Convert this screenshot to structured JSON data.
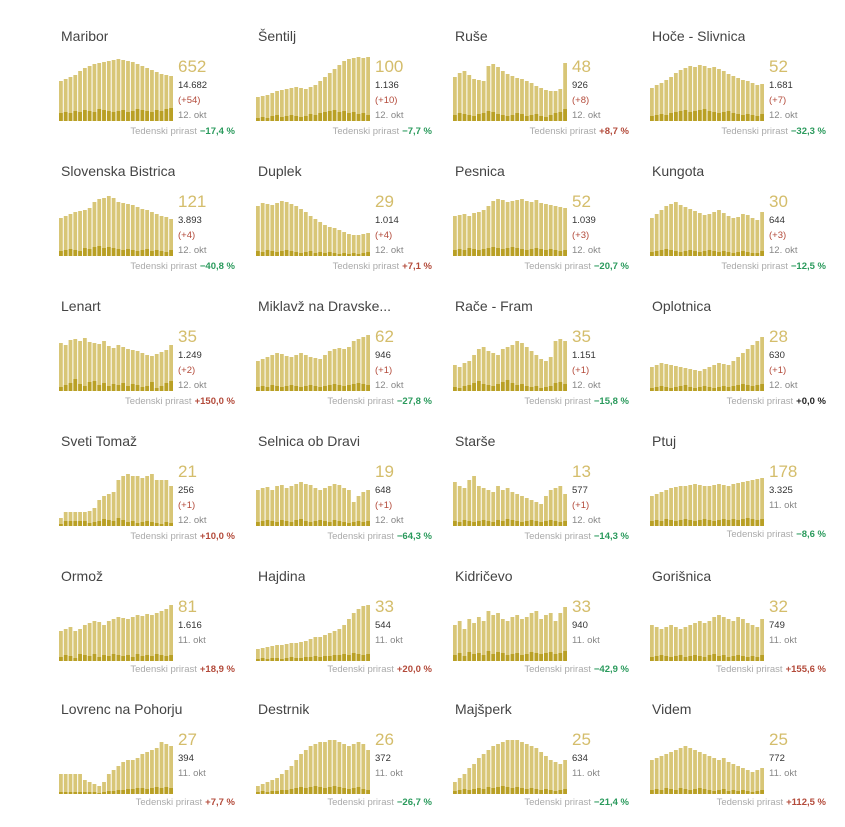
{
  "colors": {
    "active_bar": "#d8c677",
    "new_cases_bar": "#b9a025",
    "active_number": "#d4bd6b",
    "increase": "#b34a3a",
    "decrease": "#2a9a5c",
    "neutral": "#222222"
  },
  "weekly_growth_label": "Tedenski prirast",
  "municipalities": [
    {
      "name": "Maribor",
      "active": "652",
      "total": "14.682",
      "delta": "(+54)",
      "date": "12. okt",
      "weekly": "−17,4 %",
      "trend": "down",
      "active_series": [
        40,
        42,
        44,
        46,
        50,
        53,
        55,
        57,
        58,
        59,
        60,
        61,
        62,
        61,
        60,
        59,
        57,
        55,
        53,
        51,
        49,
        47,
        46,
        45
      ],
      "new_series": [
        8,
        9,
        8,
        10,
        9,
        11,
        10,
        9,
        12,
        11,
        10,
        9,
        10,
        11,
        9,
        10,
        12,
        11,
        10,
        9,
        11,
        10,
        12,
        13
      ]
    },
    {
      "name": "Šentilj",
      "active": "100",
      "total": "1.136",
      "delta": "(+10)",
      "date": "12. okt",
      "weekly": "−7,7 %",
      "trend": "down",
      "active_series": [
        24,
        25,
        26,
        28,
        30,
        31,
        32,
        33,
        34,
        33,
        32,
        34,
        36,
        40,
        44,
        48,
        52,
        56,
        60,
        62,
        63,
        64,
        63,
        64
      ],
      "new_series": [
        3,
        4,
        3,
        5,
        6,
        4,
        5,
        6,
        5,
        4,
        5,
        7,
        6,
        8,
        9,
        10,
        11,
        9,
        10,
        8,
        9,
        7,
        8,
        6
      ]
    },
    {
      "name": "Ruše",
      "active": "48",
      "total": "926",
      "delta": "(+8)",
      "date": "12. okt",
      "weekly": "+8,7 %",
      "trend": "up",
      "active_series": [
        44,
        48,
        50,
        46,
        42,
        41,
        40,
        55,
        57,
        54,
        50,
        47,
        45,
        43,
        42,
        40,
        38,
        35,
        33,
        31,
        30,
        30,
        32,
        58
      ],
      "new_series": [
        6,
        8,
        7,
        6,
        5,
        7,
        8,
        10,
        9,
        7,
        6,
        5,
        6,
        8,
        7,
        5,
        6,
        7,
        5,
        4,
        6,
        8,
        9,
        12
      ]
    },
    {
      "name": "Hoče - Slivnica",
      "active": "52",
      "total": "1.681",
      "delta": "(+7)",
      "date": "12. okt",
      "weekly": "−32,3 %",
      "trend": "down",
      "active_series": [
        33,
        36,
        38,
        41,
        44,
        48,
        51,
        53,
        55,
        54,
        56,
        55,
        53,
        54,
        52,
        50,
        47,
        45,
        43,
        41,
        40,
        38,
        36,
        37
      ],
      "new_series": [
        5,
        6,
        7,
        6,
        8,
        9,
        10,
        11,
        9,
        10,
        11,
        12,
        10,
        9,
        8,
        9,
        10,
        8,
        7,
        6,
        7,
        6,
        5,
        7
      ]
    },
    {
      "name": "Slovenska Bistrica",
      "active": "121",
      "total": "3.893",
      "delta": "(+4)",
      "date": "12. okt",
      "weekly": "−40,8 %",
      "trend": "down",
      "active_series": [
        38,
        40,
        42,
        44,
        45,
        46,
        48,
        54,
        57,
        58,
        60,
        58,
        54,
        53,
        52,
        51,
        49,
        47,
        46,
        44,
        42,
        40,
        39,
        37
      ],
      "new_series": [
        5,
        6,
        7,
        6,
        5,
        8,
        7,
        9,
        10,
        8,
        9,
        8,
        7,
        6,
        7,
        6,
        5,
        6,
        7,
        5,
        6,
        5,
        4,
        6
      ]
    },
    {
      "name": "Duplek",
      "active": "29",
      "total": "1.014",
      "delta": "(+4)",
      "date": "12. okt",
      "weekly": "+7,1 %",
      "trend": "up",
      "active_series": [
        50,
        53,
        52,
        51,
        53,
        55,
        54,
        52,
        50,
        47,
        44,
        40,
        37,
        34,
        31,
        29,
        28,
        26,
        24,
        22,
        21,
        21,
        22,
        23
      ],
      "new_series": [
        5,
        4,
        6,
        5,
        4,
        5,
        6,
        5,
        4,
        3,
        4,
        5,
        3,
        4,
        3,
        4,
        3,
        2,
        3,
        2,
        3,
        2,
        3,
        4
      ]
    },
    {
      "name": "Pesnica",
      "active": "52",
      "total": "1.039",
      "delta": "(+3)",
      "date": "12. okt",
      "weekly": "−20,7 %",
      "trend": "down",
      "active_series": [
        40,
        41,
        42,
        40,
        43,
        44,
        46,
        50,
        55,
        57,
        56,
        54,
        55,
        56,
        57,
        55,
        54,
        56,
        53,
        52,
        51,
        50,
        49,
        48
      ],
      "new_series": [
        6,
        7,
        6,
        8,
        7,
        6,
        7,
        8,
        9,
        8,
        7,
        8,
        9,
        8,
        7,
        6,
        7,
        8,
        7,
        6,
        7,
        6,
        5,
        6
      ]
    },
    {
      "name": "Kungota",
      "active": "30",
      "total": "644",
      "delta": "(+3)",
      "date": "12. okt",
      "weekly": "−12,5 %",
      "trend": "down",
      "active_series": [
        38,
        42,
        46,
        50,
        52,
        54,
        51,
        49,
        47,
        45,
        43,
        41,
        42,
        44,
        46,
        43,
        40,
        38,
        39,
        42,
        41,
        38,
        36,
        44
      ],
      "new_series": [
        4,
        5,
        6,
        7,
        6,
        5,
        4,
        5,
        6,
        5,
        4,
        5,
        6,
        5,
        4,
        5,
        4,
        3,
        4,
        5,
        4,
        3,
        3,
        5
      ]
    },
    {
      "name": "Lenart",
      "active": "35",
      "total": "1.249",
      "delta": "(+2)",
      "date": "12. okt",
      "weekly": "+150,0 %",
      "trend": "up",
      "active_series": [
        48,
        46,
        51,
        52,
        50,
        53,
        49,
        48,
        47,
        50,
        45,
        43,
        46,
        44,
        42,
        41,
        40,
        38,
        36,
        35,
        37,
        39,
        41,
        46
      ],
      "new_series": [
        4,
        6,
        8,
        12,
        7,
        5,
        9,
        10,
        6,
        8,
        5,
        7,
        6,
        8,
        5,
        7,
        6,
        4,
        5,
        9,
        3,
        5,
        8,
        10
      ]
    },
    {
      "name": "Miklavž na Dravske...",
      "active": "62",
      "total": "946",
      "delta": "(+1)",
      "date": "12. okt",
      "weekly": "−27,8 %",
      "trend": "down",
      "active_series": [
        30,
        32,
        34,
        36,
        38,
        37,
        35,
        34,
        36,
        38,
        36,
        34,
        33,
        32,
        36,
        40,
        42,
        43,
        42,
        44,
        50,
        52,
        54,
        56
      ],
      "new_series": [
        4,
        5,
        4,
        6,
        5,
        4,
        5,
        6,
        5,
        4,
        5,
        6,
        5,
        4,
        5,
        6,
        7,
        6,
        5,
        6,
        7,
        8,
        7,
        6
      ]
    },
    {
      "name": "Rače - Fram",
      "active": "35",
      "total": "1.151",
      "delta": "(+1)",
      "date": "12. okt",
      "weekly": "−15,8 %",
      "trend": "down",
      "active_series": [
        26,
        24,
        28,
        30,
        36,
        42,
        44,
        40,
        38,
        36,
        42,
        44,
        46,
        50,
        48,
        44,
        40,
        36,
        32,
        30,
        34,
        50,
        52,
        50
      ],
      "new_series": [
        4,
        3,
        5,
        6,
        8,
        10,
        7,
        6,
        5,
        7,
        9,
        11,
        8,
        6,
        7,
        5,
        4,
        5,
        3,
        4,
        5,
        8,
        9,
        7
      ]
    },
    {
      "name": "Oplotnica",
      "active": "28",
      "total": "630",
      "delta": "(+1)",
      "date": "12. okt",
      "weekly": "+0,0 %",
      "trend": "zero",
      "active_series": [
        24,
        26,
        28,
        27,
        26,
        25,
        24,
        23,
        22,
        21,
        20,
        22,
        24,
        26,
        28,
        27,
        26,
        30,
        34,
        38,
        42,
        46,
        50,
        54
      ],
      "new_series": [
        3,
        4,
        5,
        4,
        3,
        4,
        5,
        6,
        4,
        3,
        4,
        5,
        4,
        3,
        4,
        5,
        4,
        5,
        6,
        7,
        6,
        5,
        6,
        7
      ]
    },
    {
      "name": "Sveti Tomaž",
      "active": "21",
      "total": "256",
      "delta": "(+1)",
      "date": "12. okt",
      "weekly": "+10,0 %",
      "trend": "up",
      "active_series": [
        8,
        14,
        14,
        14,
        14,
        14,
        15,
        18,
        26,
        30,
        32,
        34,
        46,
        50,
        52,
        50,
        50,
        48,
        50,
        52,
        46,
        46,
        46,
        40
      ],
      "new_series": [
        2,
        5,
        5,
        5,
        5,
        5,
        3,
        4,
        5,
        7,
        6,
        5,
        8,
        6,
        4,
        5,
        3,
        4,
        5,
        4,
        3,
        2,
        4,
        3
      ]
    },
    {
      "name": "Selnica ob Dravi",
      "active": "19",
      "total": "648",
      "delta": "(+1)",
      "date": "12. okt",
      "weekly": "−64,3 %",
      "trend": "down",
      "active_series": [
        36,
        38,
        39,
        36,
        40,
        41,
        38,
        40,
        42,
        44,
        42,
        41,
        38,
        36,
        38,
        40,
        42,
        41,
        38,
        36,
        24,
        30,
        34,
        36
      ],
      "new_series": [
        4,
        5,
        6,
        5,
        4,
        6,
        5,
        4,
        6,
        7,
        5,
        4,
        5,
        6,
        5,
        4,
        6,
        5,
        4,
        3,
        4,
        5,
        4,
        5
      ]
    },
    {
      "name": "Starše",
      "active": "13",
      "total": "577",
      "delta": "(+1)",
      "date": "12. okt",
      "weekly": "−14,3 %",
      "trend": "down",
      "active_series": [
        44,
        40,
        38,
        46,
        50,
        40,
        38,
        36,
        34,
        40,
        36,
        38,
        34,
        32,
        30,
        28,
        26,
        24,
        22,
        30,
        36,
        38,
        40,
        32
      ],
      "new_series": [
        5,
        4,
        6,
        5,
        4,
        5,
        6,
        5,
        4,
        6,
        5,
        7,
        6,
        5,
        4,
        5,
        6,
        5,
        4,
        5,
        6,
        5,
        4,
        5
      ]
    },
    {
      "name": "Ptuj",
      "active": "178",
      "total": "3.325",
      "delta": "",
      "date": "11. okt",
      "weekly": "−8,6 %",
      "trend": "down",
      "active_series": [
        30,
        32,
        34,
        36,
        38,
        39,
        40,
        40,
        41,
        42,
        41,
        40,
        40,
        41,
        42,
        41,
        40,
        42,
        43,
        44,
        45,
        46,
        47,
        48
      ],
      "new_series": [
        5,
        6,
        5,
        7,
        6,
        5,
        6,
        7,
        6,
        5,
        6,
        7,
        6,
        5,
        6,
        7,
        6,
        7,
        6,
        7,
        8,
        7,
        6,
        7
      ]
    },
    {
      "name": "Ormož",
      "active": "81",
      "total": "1.616",
      "delta": "",
      "date": "11. okt",
      "weekly": "+18,9 %",
      "trend": "up",
      "active_series": [
        30,
        32,
        34,
        30,
        32,
        36,
        38,
        40,
        39,
        36,
        40,
        42,
        44,
        43,
        42,
        44,
        46,
        45,
        47,
        46,
        48,
        50,
        52,
        56
      ],
      "new_series": [
        4,
        6,
        5,
        3,
        7,
        6,
        5,
        7,
        4,
        6,
        5,
        7,
        6,
        5,
        6,
        4,
        7,
        5,
        6,
        5,
        7,
        6,
        5,
        6
      ]
    },
    {
      "name": "Hajdina",
      "active": "33",
      "total": "544",
      "delta": "",
      "date": "11. okt",
      "weekly": "+20,0 %",
      "trend": "up",
      "active_series": [
        12,
        13,
        14,
        15,
        16,
        16,
        17,
        18,
        18,
        19,
        20,
        22,
        24,
        24,
        26,
        28,
        30,
        32,
        36,
        42,
        48,
        52,
        55,
        56
      ],
      "new_series": [
        2,
        3,
        2,
        3,
        3,
        2,
        3,
        4,
        3,
        3,
        4,
        4,
        5,
        4,
        5,
        5,
        6,
        6,
        7,
        6,
        8,
        7,
        6,
        7
      ]
    },
    {
      "name": "Kidričevo",
      "active": "33",
      "total": "940",
      "delta": "",
      "date": "11. okt",
      "weekly": "−42,9 %",
      "trend": "down",
      "active_series": [
        36,
        40,
        32,
        42,
        38,
        44,
        40,
        50,
        46,
        48,
        42,
        40,
        44,
        46,
        42,
        44,
        48,
        50,
        42,
        46,
        48,
        40,
        48,
        54
      ],
      "new_series": [
        6,
        8,
        5,
        9,
        7,
        8,
        6,
        10,
        7,
        9,
        8,
        6,
        7,
        8,
        6,
        7,
        9,
        8,
        7,
        8,
        9,
        7,
        8,
        10
      ]
    },
    {
      "name": "Gorišnica",
      "active": "32",
      "total": "749",
      "delta": "",
      "date": "11. okt",
      "weekly": "+155,6 %",
      "trend": "up",
      "active_series": [
        36,
        34,
        32,
        34,
        36,
        34,
        32,
        34,
        36,
        38,
        40,
        38,
        40,
        44,
        46,
        44,
        42,
        40,
        44,
        42,
        38,
        36,
        34,
        42
      ],
      "new_series": [
        4,
        5,
        6,
        5,
        4,
        5,
        6,
        4,
        5,
        6,
        5,
        4,
        6,
        7,
        5,
        6,
        4,
        5,
        6,
        5,
        4,
        5,
        4,
        6
      ]
    },
    {
      "name": "Lovrenc na Pohorju",
      "active": "27",
      "total": "394",
      "delta": "",
      "date": "11. okt",
      "weekly": "+7,7 %",
      "trend": "up",
      "active_series": [
        20,
        20,
        20,
        20,
        20,
        14,
        12,
        10,
        8,
        12,
        20,
        24,
        28,
        32,
        34,
        34,
        36,
        40,
        42,
        44,
        46,
        52,
        50,
        48
      ],
      "new_series": [
        2,
        2,
        2,
        2,
        2,
        2,
        2,
        2,
        1,
        2,
        3,
        3,
        4,
        4,
        5,
        5,
        6,
        6,
        5,
        6,
        7,
        6,
        7,
        6
      ]
    },
    {
      "name": "Destrnik",
      "active": "26",
      "total": "372",
      "delta": "",
      "date": "11. okt",
      "weekly": "−26,7 %",
      "trend": "down",
      "active_series": [
        8,
        10,
        12,
        14,
        16,
        20,
        24,
        28,
        34,
        40,
        44,
        48,
        50,
        52,
        52,
        54,
        54,
        52,
        50,
        48,
        50,
        52,
        50,
        44
      ],
      "new_series": [
        2,
        3,
        2,
        3,
        3,
        4,
        4,
        5,
        6,
        7,
        6,
        7,
        8,
        7,
        6,
        7,
        8,
        7,
        6,
        5,
        6,
        7,
        5,
        4
      ]
    },
    {
      "name": "Majšperk",
      "active": "25",
      "total": "634",
      "delta": "",
      "date": "11. okt",
      "weekly": "−21,4 %",
      "trend": "down",
      "active_series": [
        12,
        16,
        20,
        26,
        30,
        36,
        40,
        44,
        48,
        50,
        52,
        54,
        54,
        54,
        52,
        50,
        48,
        46,
        42,
        38,
        34,
        32,
        30,
        34
      ],
      "new_series": [
        3,
        4,
        5,
        4,
        5,
        6,
        5,
        7,
        6,
        7,
        8,
        7,
        6,
        7,
        6,
        5,
        6,
        5,
        4,
        5,
        4,
        3,
        4,
        5
      ]
    },
    {
      "name": "Videm",
      "active": "25",
      "total": "772",
      "delta": "",
      "date": "11. okt",
      "weekly": "+112,5 %",
      "trend": "up",
      "active_series": [
        34,
        36,
        38,
        40,
        42,
        44,
        46,
        48,
        46,
        44,
        42,
        40,
        38,
        36,
        34,
        36,
        32,
        30,
        28,
        26,
        24,
        22,
        24,
        26
      ],
      "new_series": [
        4,
        5,
        4,
        6,
        5,
        4,
        6,
        5,
        4,
        5,
        6,
        5,
        4,
        3,
        4,
        5,
        3,
        4,
        3,
        4,
        3,
        2,
        3,
        4
      ]
    }
  ]
}
